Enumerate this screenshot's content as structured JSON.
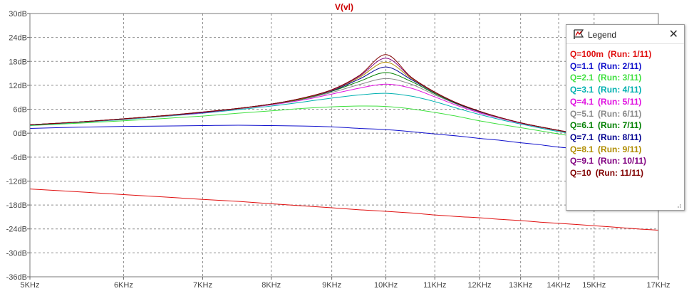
{
  "chart_data": {
    "type": "line",
    "title": "V(vl)",
    "title_color": "#cc0000",
    "x_scale": "log",
    "xlim": [
      5000,
      17000
    ],
    "ylim": [
      -36,
      30
    ],
    "x_ticks": [
      {
        "value": 5000,
        "label": "5KHz"
      },
      {
        "value": 6000,
        "label": "6KHz"
      },
      {
        "value": 7000,
        "label": "7KHz"
      },
      {
        "value": 8000,
        "label": "8KHz"
      },
      {
        "value": 9000,
        "label": "9KHz"
      },
      {
        "value": 10000,
        "label": "10KHz"
      },
      {
        "value": 11000,
        "label": "11KHz"
      },
      {
        "value": 12000,
        "label": "12KHz"
      },
      {
        "value": 13000,
        "label": "13KHz"
      },
      {
        "value": 14000,
        "label": "14KHz"
      },
      {
        "value": 15000,
        "label": "15KHz"
      },
      {
        "value": 17000,
        "label": "17KHz"
      }
    ],
    "y_ticks": [
      {
        "value": 30,
        "label": "30dB"
      },
      {
        "value": 24,
        "label": "24dB"
      },
      {
        "value": 18,
        "label": "18dB"
      },
      {
        "value": 12,
        "label": "12dB"
      },
      {
        "value": 6,
        "label": "6dB"
      },
      {
        "value": 0,
        "label": "0dB"
      },
      {
        "value": -6,
        "label": "-6dB"
      },
      {
        "value": -12,
        "label": "-12dB"
      },
      {
        "value": -18,
        "label": "-18dB"
      },
      {
        "value": -24,
        "label": "-24dB"
      },
      {
        "value": -30,
        "label": "-30dB"
      },
      {
        "value": -36,
        "label": "-36dB"
      }
    ],
    "grid": true,
    "x": [
      5000,
      5500,
      6000,
      6500,
      7000,
      7500,
      8000,
      8500,
      9000,
      9500,
      10000,
      10500,
      11000,
      11500,
      12000,
      12500,
      13000,
      13500,
      14000,
      14500,
      15000,
      15500,
      16000,
      16500,
      17000
    ],
    "series": [
      {
        "name": "Q=100m",
        "run": "(Run: 1/11)",
        "color": "#e01010",
        "values": [
          -14.0,
          -14.7,
          -15.4,
          -16.0,
          -16.6,
          -17.1,
          -17.7,
          -18.2,
          -18.7,
          -19.2,
          -19.6,
          -20.0,
          -20.5,
          -20.9,
          -21.2,
          -21.6,
          -21.9,
          -22.3,
          -22.6,
          -22.9,
          -23.2,
          -23.5,
          -23.8,
          -24.1,
          -24.3
        ]
      },
      {
        "name": "Q=1.1",
        "run": "(Run: 2/11)",
        "color": "#1010cc",
        "values": [
          1.2,
          1.5,
          1.7,
          1.8,
          1.9,
          2.0,
          1.9,
          1.8,
          1.6,
          1.2,
          0.9,
          0.4,
          -0.2,
          -0.7,
          -1.3,
          -1.8,
          -2.4,
          -2.9,
          -3.5,
          -3.9,
          -4.4,
          -4.9,
          -5.3,
          -5.7,
          -6.1
        ]
      },
      {
        "name": "Q=2.1",
        "run": "(Run: 3/11)",
        "color": "#40e040",
        "values": [
          1.9,
          2.5,
          3.1,
          3.7,
          4.3,
          5.0,
          5.6,
          6.2,
          6.6,
          6.8,
          6.7,
          6.1,
          5.2,
          4.2,
          3.1,
          2.2,
          1.4,
          0.6,
          -0.2,
          -0.9,
          -1.5,
          -2.1,
          -2.6,
          -3.1,
          -3.6
        ]
      },
      {
        "name": "Q=3.1",
        "run": "(Run: 4/11)",
        "color": "#00b0b0",
        "values": [
          2.0,
          2.7,
          3.4,
          4.2,
          5.0,
          5.9,
          6.8,
          7.8,
          8.8,
          9.6,
          10.0,
          9.3,
          7.9,
          6.2,
          4.7,
          3.4,
          2.3,
          1.3,
          0.4,
          -0.3,
          -1.0,
          -1.6,
          -2.2,
          -2.7,
          -3.2
        ]
      },
      {
        "name": "Q=4.1",
        "run": "(Run: 5/11)",
        "color": "#e010e0",
        "values": [
          2.1,
          2.8,
          3.5,
          4.3,
          5.1,
          6.1,
          7.1,
          8.3,
          9.8,
          11.3,
          12.3,
          11.3,
          9.1,
          6.9,
          5.1,
          3.7,
          2.5,
          1.5,
          0.6,
          -0.2,
          -0.9,
          -1.5,
          -2.1,
          -2.6,
          -3.1
        ]
      },
      {
        "name": "Q=5.1",
        "run": "(Run: 6/11)",
        "color": "#8a8a8a",
        "values": [
          2.1,
          2.8,
          3.5,
          4.3,
          5.2,
          6.1,
          7.2,
          8.5,
          10.2,
          12.2,
          13.7,
          12.3,
          9.6,
          7.2,
          5.3,
          3.8,
          2.6,
          1.5,
          0.6,
          -0.1,
          -0.8,
          -1.5,
          -2.1,
          -2.6,
          -3.1
        ]
      },
      {
        "name": "Q=6.1",
        "run": "(Run: 7/11)",
        "color": "#008000",
        "values": [
          2.1,
          2.8,
          3.6,
          4.4,
          5.2,
          6.2,
          7.3,
          8.6,
          10.5,
          13.0,
          15.2,
          13.0,
          9.9,
          7.3,
          5.4,
          3.9,
          2.6,
          1.6,
          0.7,
          -0.1,
          -0.8,
          -1.4,
          -2.0,
          -2.6,
          -3.1
        ]
      },
      {
        "name": "Q=7.1",
        "run": "(Run: 8/11)",
        "color": "#000090",
        "values": [
          2.1,
          2.8,
          3.6,
          4.4,
          5.2,
          6.2,
          7.3,
          8.7,
          10.6,
          13.6,
          16.6,
          13.5,
          10.1,
          7.4,
          5.4,
          3.9,
          2.6,
          1.6,
          0.7,
          -0.1,
          -0.8,
          -1.4,
          -2.0,
          -2.6,
          -3.1
        ]
      },
      {
        "name": "Q=8.1",
        "run": "(Run: 9/11)",
        "color": "#b08c00",
        "values": [
          2.1,
          2.8,
          3.6,
          4.4,
          5.3,
          6.2,
          7.3,
          8.7,
          10.7,
          14.0,
          17.8,
          13.8,
          10.2,
          7.5,
          5.5,
          3.9,
          2.6,
          1.6,
          0.7,
          -0.1,
          -0.8,
          -1.4,
          -2.0,
          -2.6,
          -3.1
        ]
      },
      {
        "name": "Q=9.1",
        "run": "(Run: 10/11)",
        "color": "#800080",
        "values": [
          2.1,
          2.8,
          3.6,
          4.4,
          5.3,
          6.2,
          7.3,
          8.8,
          10.8,
          14.3,
          18.8,
          14.0,
          10.3,
          7.5,
          5.5,
          3.9,
          2.6,
          1.6,
          0.7,
          -0.1,
          -0.8,
          -1.4,
          -2.0,
          -2.6,
          -3.1
        ]
      },
      {
        "name": "Q=10",
        "run": "(Run: 11/11)",
        "color": "#800000",
        "values": [
          2.1,
          2.8,
          3.6,
          4.4,
          5.3,
          6.2,
          7.3,
          8.8,
          10.9,
          14.5,
          19.7,
          14.1,
          10.3,
          7.5,
          5.5,
          3.9,
          2.6,
          1.6,
          0.7,
          -0.1,
          -0.8,
          -1.4,
          -2.0,
          -2.6,
          -3.1
        ]
      }
    ]
  },
  "legend": {
    "title": "Legend",
    "close_icon": "close-icon",
    "icon": "legend-icon",
    "placement": "right"
  }
}
